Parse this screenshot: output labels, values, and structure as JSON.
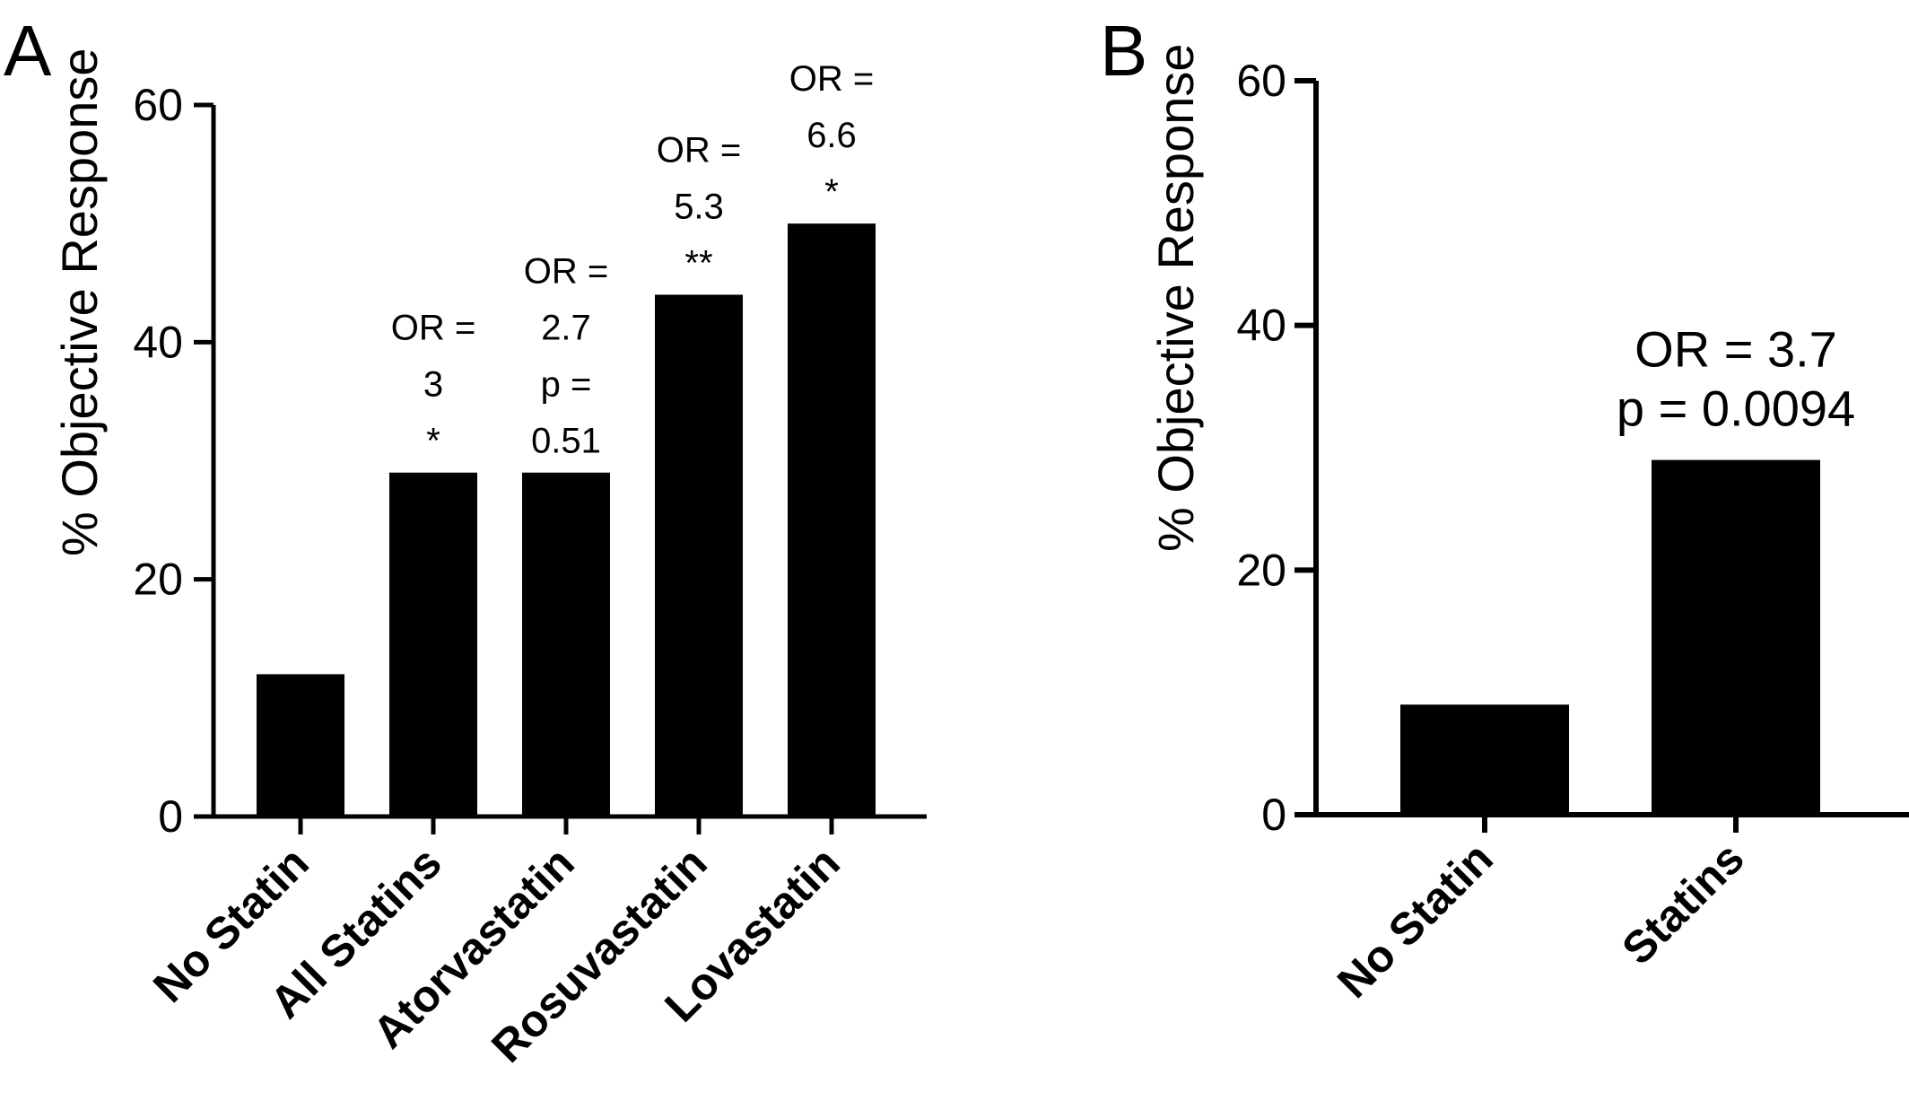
{
  "chart_data": [
    {
      "panel_label": "A",
      "type": "bar",
      "ylabel": "% Objective Response",
      "ylim": [
        0,
        60
      ],
      "yticks": [
        "0",
        "20",
        "40",
        "60"
      ],
      "categories": [
        "No Statin",
        "All Statins",
        "Atorvastatin",
        "Rosuvastatin",
        "Lovastatin"
      ],
      "values": [
        12,
        29,
        29,
        44,
        50
      ],
      "bar_color": "#000000",
      "annotations": [
        [],
        [
          "OR =",
          "3",
          "*"
        ],
        [
          "OR =",
          "2.7",
          "p =",
          "0.51"
        ],
        [
          "OR =",
          "5.3",
          "**"
        ],
        [
          "OR =",
          "6.6",
          "*"
        ]
      ]
    },
    {
      "panel_label": "B",
      "type": "bar",
      "ylabel": "% Objective Response",
      "ylim": [
        0,
        60
      ],
      "yticks": [
        "0",
        "20",
        "40",
        "60"
      ],
      "categories": [
        "No Statin",
        "Statins"
      ],
      "values": [
        9,
        29
      ],
      "bar_color": "#000000",
      "annotations": [
        [],
        [
          "OR = 3.7",
          "p = 0.0094"
        ]
      ]
    }
  ]
}
